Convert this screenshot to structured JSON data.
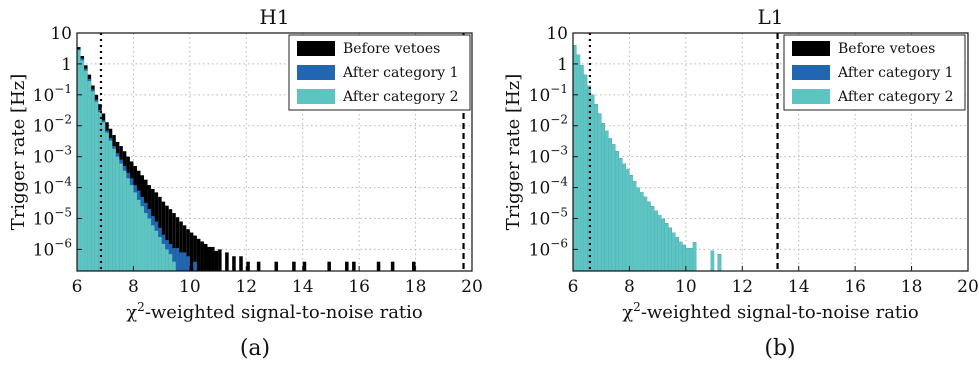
{
  "chart_data": [
    {
      "type": "bar",
      "subtype": "step-histogram",
      "title": "H1",
      "caption": "(a)",
      "xlabel": "χ²-weighted signal-to-noise ratio",
      "ylabel": "Trigger rate [Hz]",
      "xlim": [
        6,
        20
      ],
      "ylim": [
        2e-07,
        10
      ],
      "yscale": "log",
      "grid": true,
      "legend": {
        "position": "top-right",
        "entries": [
          "Before vetoes",
          "After category 1",
          "After category 2"
        ]
      },
      "x_ticks": [
        "6",
        "8",
        "10",
        "12",
        "14",
        "16",
        "18",
        "20"
      ],
      "y_ticks": [
        {
          "v": 10,
          "base": "10",
          "exp": ""
        },
        {
          "v": 1,
          "base": "1",
          "exp": ""
        },
        {
          "v": 0.1,
          "base": "10",
          "exp": "−1"
        },
        {
          "v": 0.01,
          "base": "10",
          "exp": "−2"
        },
        {
          "v": 0.001,
          "base": "10",
          "exp": "−3"
        },
        {
          "v": 0.0001,
          "base": "10",
          "exp": "−4"
        },
        {
          "v": 1e-05,
          "base": "10",
          "exp": "−5"
        },
        {
          "v": 1e-06,
          "base": "10",
          "exp": "−6"
        }
      ],
      "thresholds": [
        6.85,
        19.7
      ],
      "bin_width": 0.125,
      "series": [
        {
          "name": "Before vetoes",
          "color": "#000000",
          "x": [
            6.0,
            6.125,
            6.25,
            6.375,
            6.5,
            6.625,
            6.75,
            6.875,
            7.0,
            7.125,
            7.25,
            7.375,
            7.5,
            7.625,
            7.75,
            7.875,
            8.0,
            8.125,
            8.25,
            8.375,
            8.5,
            8.625,
            8.75,
            8.875,
            9.0,
            9.125,
            9.25,
            9.375,
            9.5,
            9.625,
            9.75,
            9.875,
            10.0,
            10.125,
            10.25,
            10.375,
            10.5,
            10.625,
            10.75,
            10.875,
            11.0,
            11.25,
            11.5,
            11.75,
            12.0,
            12.375,
            13.0,
            13.625,
            14.0,
            14.875,
            15.5,
            15.75,
            16.625,
            17.125,
            17.875
          ],
          "y": [
            3.5,
            1.8,
            0.9,
            0.45,
            0.2,
            0.1,
            0.05,
            0.025,
            0.013,
            0.008,
            0.005,
            0.003,
            0.0022,
            0.0015,
            0.001,
            0.0007,
            0.0005,
            0.00035,
            0.00025,
            0.00018,
            0.00012,
            9e-05,
            7e-05,
            5e-05,
            3.5e-05,
            2.6e-05,
            2e-05,
            1.5e-05,
            1.1e-05,
            8e-06,
            6e-06,
            4.5e-06,
            3.5e-06,
            2.8e-06,
            2.2e-06,
            1.8e-06,
            1.5e-06,
            1.2e-06,
            1.2e-06,
            9e-07,
            1e-06,
            8e-07,
            6e-07,
            6e-07,
            4e-07,
            4e-07,
            4e-07,
            4e-07,
            4e-07,
            4e-07,
            4e-07,
            4e-07,
            4e-07,
            4e-07,
            4e-07
          ]
        },
        {
          "name": "After category 1",
          "color": "#2166b0",
          "x": [
            6.0,
            6.125,
            6.25,
            6.375,
            6.5,
            6.625,
            6.75,
            6.875,
            7.0,
            7.125,
            7.25,
            7.375,
            7.5,
            7.625,
            7.75,
            7.875,
            8.0,
            8.125,
            8.25,
            8.375,
            8.5,
            8.625,
            8.75,
            8.875,
            9.0,
            9.125,
            9.25,
            9.375,
            9.5,
            9.625,
            9.75,
            9.875,
            10.125
          ],
          "y": [
            3.0,
            1.5,
            0.7,
            0.33,
            0.15,
            0.07,
            0.032,
            0.015,
            0.007,
            0.004,
            0.0022,
            0.0013,
            0.0008,
            0.0005,
            0.0003,
            0.0002,
            0.00012,
            8e-05,
            5e-05,
            3.2e-05,
            2e-05,
            1.2e-05,
            8e-06,
            5e-06,
            3e-06,
            2e-06,
            1.5e-06,
            1.1e-06,
            1.1e-06,
            8e-07,
            8e-07,
            6e-07,
            4e-07
          ]
        },
        {
          "name": "After category 2",
          "color": "#5ec4c2",
          "x": [
            6.0,
            6.125,
            6.25,
            6.375,
            6.5,
            6.625,
            6.75,
            6.875,
            7.0,
            7.125,
            7.25,
            7.375,
            7.5,
            7.625,
            7.75,
            7.875,
            8.0,
            8.125,
            8.25,
            8.375,
            8.5,
            8.625,
            8.75,
            8.875,
            9.0,
            9.125,
            9.25,
            9.375
          ],
          "y": [
            2.8,
            1.3,
            0.6,
            0.28,
            0.13,
            0.06,
            0.028,
            0.013,
            0.006,
            0.0033,
            0.0018,
            0.001,
            0.0006,
            0.00035,
            0.0002,
            0.00012,
            7e-05,
            4e-05,
            2.5e-05,
            1.5e-05,
            1e-05,
            6e-06,
            4e-06,
            2.5e-06,
            1.5e-06,
            1e-06,
            7e-07,
            4e-07
          ]
        }
      ]
    },
    {
      "type": "bar",
      "subtype": "step-histogram",
      "title": "L1",
      "caption": "(b)",
      "xlabel": "χ²-weighted signal-to-noise ratio",
      "ylabel": "Trigger rate [Hz]",
      "xlim": [
        6,
        20
      ],
      "ylim": [
        2e-07,
        10
      ],
      "yscale": "log",
      "grid": true,
      "legend": {
        "position": "top-right",
        "entries": [
          "Before vetoes",
          "After category 1",
          "After category 2"
        ]
      },
      "x_ticks": [
        "6",
        "8",
        "10",
        "12",
        "14",
        "16",
        "18",
        "20"
      ],
      "y_ticks": [
        {
          "v": 10,
          "base": "10",
          "exp": ""
        },
        {
          "v": 1,
          "base": "1",
          "exp": ""
        },
        {
          "v": 0.1,
          "base": "10",
          "exp": "−1"
        },
        {
          "v": 0.01,
          "base": "10",
          "exp": "−2"
        },
        {
          "v": 0.001,
          "base": "10",
          "exp": "−3"
        },
        {
          "v": 0.0001,
          "base": "10",
          "exp": "−4"
        },
        {
          "v": 1e-05,
          "base": "10",
          "exp": "−5"
        },
        {
          "v": 1e-06,
          "base": "10",
          "exp": "−6"
        }
      ],
      "thresholds": [
        6.6,
        13.25
      ],
      "bin_width": 0.125,
      "series": [
        {
          "name": "Before vetoes",
          "color": "#000000",
          "x": [
            6.0,
            6.125,
            6.25,
            6.375,
            6.5,
            6.625,
            6.75,
            6.875,
            7.0,
            7.125,
            7.25,
            7.375,
            7.5,
            7.625,
            7.75,
            7.875,
            8.0,
            8.125,
            8.25,
            8.375,
            8.5,
            8.625,
            8.75,
            8.875,
            9.0,
            9.125,
            9.25,
            9.375,
            9.5,
            9.625,
            9.75,
            9.875,
            10.0,
            10.125,
            10.25,
            10.875,
            11.125
          ],
          "y": [
            4.0,
            2.0,
            0.9,
            0.45,
            0.2,
            0.1,
            0.05,
            0.025,
            0.012,
            0.007,
            0.004,
            0.0025,
            0.0015,
            0.0009,
            0.0006,
            0.0004,
            0.00025,
            0.00016,
            0.0001,
            7e-05,
            5e-05,
            3.5e-05,
            2.5e-05,
            1.8e-05,
            1.3e-05,
            1e-05,
            7e-06,
            5e-06,
            3.5e-06,
            2.5e-06,
            1.8e-06,
            1.4e-06,
            1.1e-06,
            1.1e-06,
            1.7e-06,
            9e-07,
            7e-07
          ]
        },
        {
          "name": "After category 1",
          "color": "#2166b0",
          "x": [
            6.0,
            6.125,
            6.25,
            6.375,
            6.5,
            6.625,
            6.75,
            6.875,
            7.0,
            7.125,
            7.25,
            7.375,
            7.5,
            7.625,
            7.75,
            7.875,
            8.0,
            8.125,
            8.25,
            8.375,
            8.5,
            8.625,
            8.75,
            8.875,
            9.0,
            9.125,
            9.25,
            9.375,
            9.5,
            9.625,
            9.75,
            9.875,
            10.0,
            10.125,
            10.25,
            10.875,
            11.125
          ],
          "y": [
            4.0,
            2.0,
            0.9,
            0.45,
            0.2,
            0.1,
            0.05,
            0.025,
            0.012,
            0.007,
            0.004,
            0.0025,
            0.0015,
            0.0009,
            0.0006,
            0.0004,
            0.00025,
            0.00016,
            0.0001,
            7e-05,
            5e-05,
            3.5e-05,
            2.5e-05,
            1.8e-05,
            1.3e-05,
            1e-05,
            7e-06,
            5e-06,
            3.5e-06,
            2.5e-06,
            1.8e-06,
            1.4e-06,
            1.1e-06,
            1.1e-06,
            1.7e-06,
            9e-07,
            7e-07
          ]
        },
        {
          "name": "After category 2",
          "color": "#5ec4c2",
          "x": [
            6.0,
            6.125,
            6.25,
            6.375,
            6.5,
            6.625,
            6.75,
            6.875,
            7.0,
            7.125,
            7.25,
            7.375,
            7.5,
            7.625,
            7.75,
            7.875,
            8.0,
            8.125,
            8.25,
            8.375,
            8.5,
            8.625,
            8.75,
            8.875,
            9.0,
            9.125,
            9.25,
            9.375,
            9.5,
            9.625,
            9.75,
            9.875,
            10.0,
            10.125,
            10.25,
            10.875,
            11.125
          ],
          "y": [
            4.0,
            2.0,
            0.9,
            0.45,
            0.2,
            0.1,
            0.05,
            0.025,
            0.012,
            0.007,
            0.004,
            0.0025,
            0.0015,
            0.0009,
            0.0006,
            0.0004,
            0.00025,
            0.00016,
            0.0001,
            7e-05,
            5e-05,
            3.5e-05,
            2.5e-05,
            1.8e-05,
            1.3e-05,
            1e-05,
            7e-06,
            5e-06,
            3.5e-06,
            2.5e-06,
            1.8e-06,
            1.4e-06,
            1.1e-06,
            1.1e-06,
            1.7e-06,
            9e-07,
            7e-07
          ]
        }
      ]
    }
  ]
}
